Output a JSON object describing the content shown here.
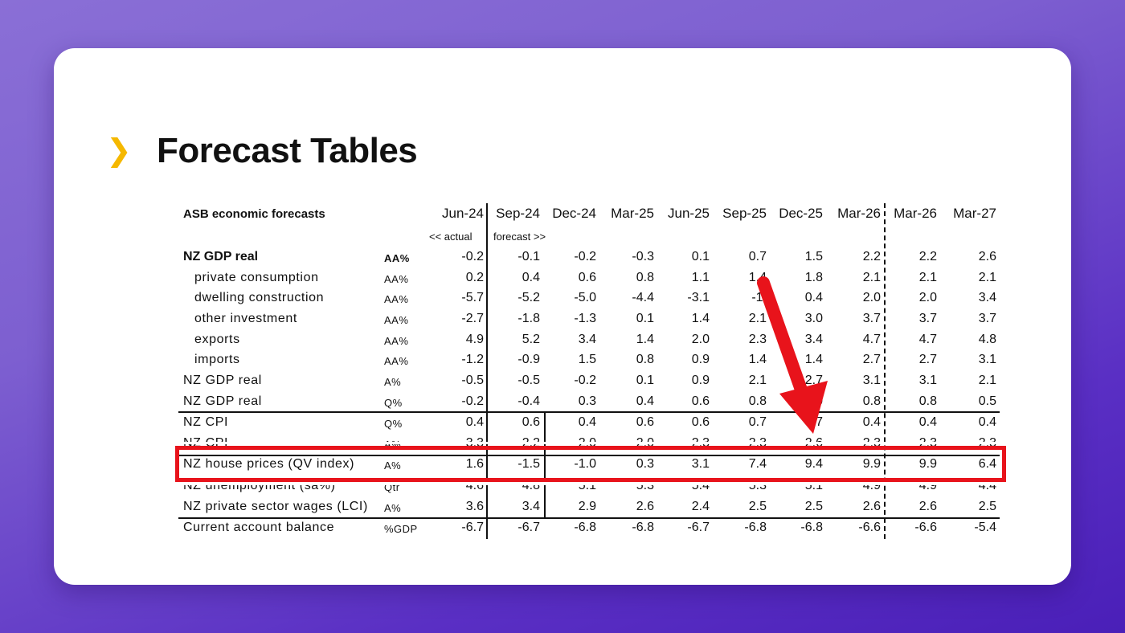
{
  "page": {
    "title": "Forecast Tables"
  },
  "table": {
    "caption": "ASB  economic forecasts",
    "columns": [
      "Jun-24",
      "Sep-24",
      "Dec-24",
      "Mar-25",
      "Jun-25",
      "Sep-25",
      "Dec-25",
      "Mar-26",
      "Mar-26",
      "Mar-27"
    ],
    "actual_note": "<< actual",
    "forecast_note": "forecast >>",
    "rows": [
      {
        "label": "NZ GDP real",
        "unit": "AA%",
        "values": [
          "-0.2",
          "-0.1",
          "-0.2",
          "-0.3",
          "0.1",
          "0.7",
          "1.5",
          "2.2",
          "2.2",
          "2.6"
        ]
      },
      {
        "label": "private consumption",
        "unit": "AA%",
        "values": [
          "0.2",
          "0.4",
          "0.6",
          "0.8",
          "1.1",
          "1.4",
          "1.8",
          "2.1",
          "2.1",
          "2.1"
        ]
      },
      {
        "label": "dwelling construction",
        "unit": "AA%",
        "values": [
          "-5.7",
          "-5.2",
          "-5.0",
          "-4.4",
          "-3.1",
          "-1.",
          "0.4",
          "2.0",
          "2.0",
          "3.4"
        ]
      },
      {
        "label": "other investment",
        "unit": "AA%",
        "values": [
          "-2.7",
          "-1.8",
          "-1.3",
          "0.1",
          "1.4",
          "2.1",
          "3.0",
          "3.7",
          "3.7",
          "3.7"
        ]
      },
      {
        "label": "exports",
        "unit": "AA%",
        "values": [
          "4.9",
          "5.2",
          "3.4",
          "1.4",
          "2.0",
          "2.3",
          "3.4",
          "4.7",
          "4.7",
          "4.8"
        ]
      },
      {
        "label": "imports",
        "unit": "AA%",
        "values": [
          "-1.2",
          "-0.9",
          "1.5",
          "0.8",
          "0.9",
          "1.4",
          "1.4",
          "2.7",
          "2.7",
          "3.1"
        ]
      },
      {
        "label": "NZ GDP real",
        "unit": "A%",
        "values": [
          "-0.5",
          "-0.5",
          "-0.2",
          "0.1",
          "0.9",
          "2.1",
          "2.7",
          "3.1",
          "3.1",
          "2.1"
        ]
      },
      {
        "label": "NZ GDP real",
        "unit": "Q%",
        "values": [
          "-0.2",
          "-0.4",
          "0.3",
          "0.4",
          "0.6",
          "0.8",
          "0",
          "0.8",
          "0.8",
          "0.5"
        ]
      },
      {
        "label": "NZ CPI",
        "unit": "Q%",
        "values": [
          "0.4",
          "0.6",
          "0.4",
          "0.6",
          "0.6",
          "0.7",
          "7",
          "0.4",
          "0.4",
          "0.4"
        ]
      },
      {
        "label": "NZ CPI",
        "unit": "A%",
        "values": [
          "3.3",
          "2.2",
          "2.0",
          "2.0",
          "2.3",
          "2.3",
          "2.6",
          "2.3",
          "2.3",
          "2.3"
        ]
      },
      {
        "label": "NZ house prices (QV index)",
        "unit": "A%",
        "values": [
          "1.6",
          "-1.5",
          "-1.0",
          "0.3",
          "3.1",
          "7.4",
          "9.4",
          "9.9",
          "9.9",
          "6.4"
        ]
      },
      {
        "label": "NZ unemployment (sa%)",
        "unit": "Qtr",
        "values": [
          "4.6",
          "4.8",
          "5.1",
          "5.3",
          "5.4",
          "5.3",
          "5.1",
          "4.9",
          "4.9",
          "4.4"
        ]
      },
      {
        "label": "NZ private sector wages (LCI)",
        "unit": "A%",
        "values": [
          "3.6",
          "3.4",
          "2.9",
          "2.6",
          "2.4",
          "2.5",
          "2.5",
          "2.6",
          "2.6",
          "2.5"
        ]
      },
      {
        "label": "Current account balance",
        "unit": "%GDP",
        "values": [
          "-6.7",
          "-6.7",
          "-6.8",
          "-6.8",
          "-6.7",
          "-6.8",
          "-6.8",
          "-6.6",
          "-6.6",
          "-5.4"
        ]
      }
    ]
  },
  "colors": {
    "accent": "#f5b800",
    "highlight": "#e8131b",
    "text": "#111111"
  },
  "icons": {
    "bullet": "chevron-right-icon",
    "pointer": "red-arrow-icon"
  },
  "glyphs": {
    "chevron": "❯"
  }
}
